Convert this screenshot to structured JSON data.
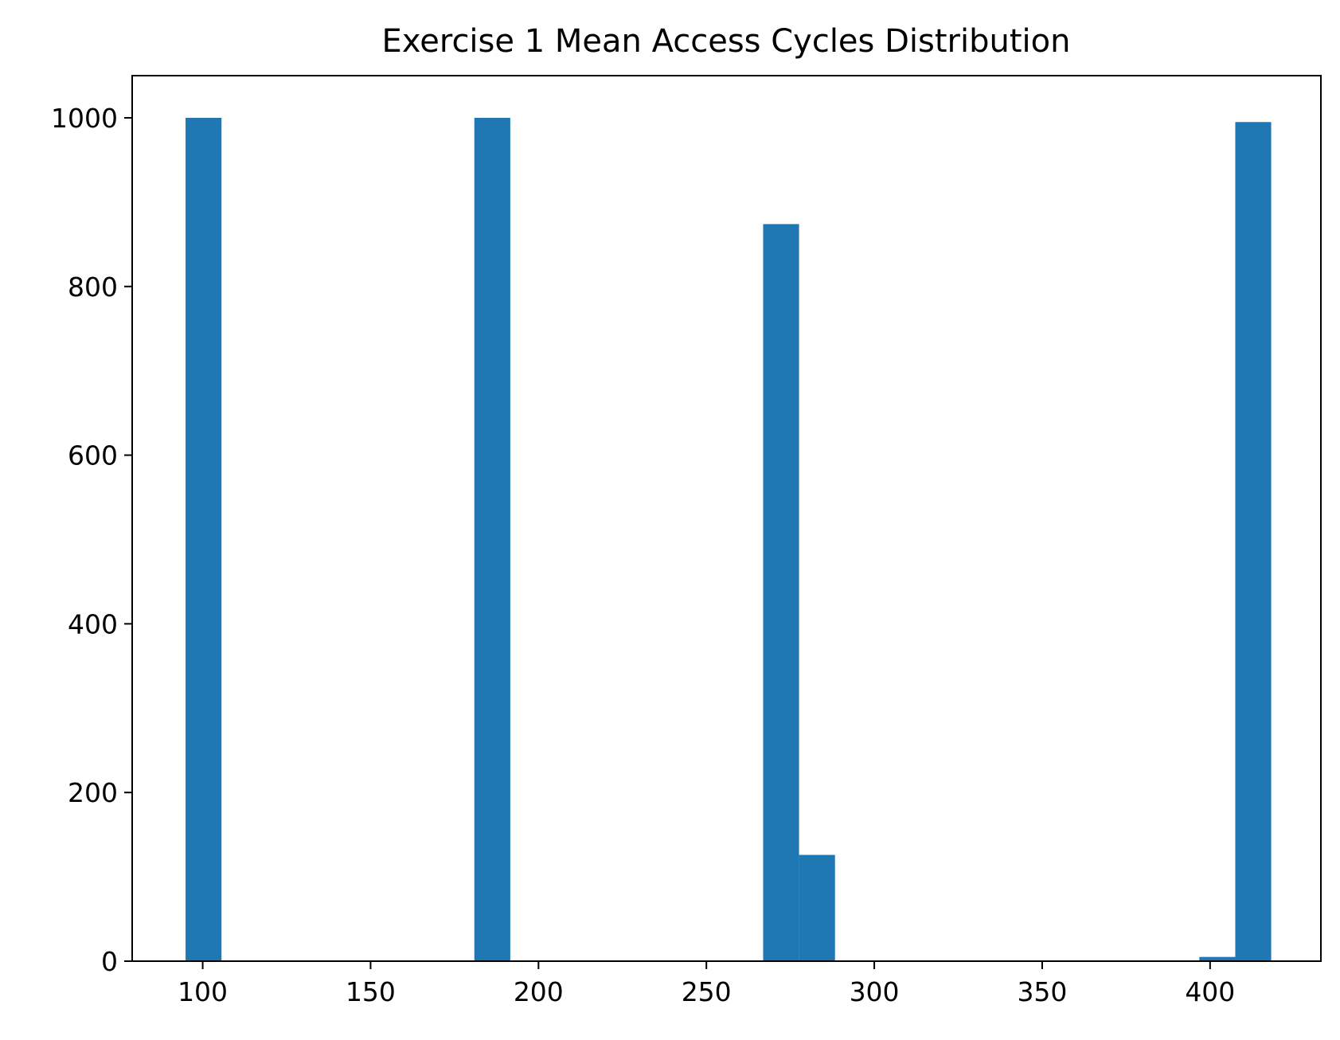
{
  "chart_data": {
    "type": "bar",
    "title": "Exercise 1 Mean Access Cycles Distribution",
    "xlabel": "",
    "ylabel": "",
    "xlim": [
      79,
      433
    ],
    "ylim": [
      0,
      1050
    ],
    "x_ticks": [
      100,
      150,
      200,
      250,
      300,
      350,
      400
    ],
    "y_ticks": [
      0,
      200,
      400,
      600,
      800,
      1000
    ],
    "bar_color": "#1f77b4",
    "grid": false,
    "legend": "none",
    "bins": [
      {
        "x0": 94.9,
        "x1": 105.6,
        "count": 1000
      },
      {
        "x0": 180.9,
        "x1": 191.6,
        "count": 1000
      },
      {
        "x0": 266.9,
        "x1": 277.6,
        "count": 874
      },
      {
        "x0": 277.6,
        "x1": 288.3,
        "count": 126
      },
      {
        "x0": 396.8,
        "x1": 407.5,
        "count": 5
      },
      {
        "x0": 407.5,
        "x1": 418.2,
        "count": 995
      }
    ]
  }
}
